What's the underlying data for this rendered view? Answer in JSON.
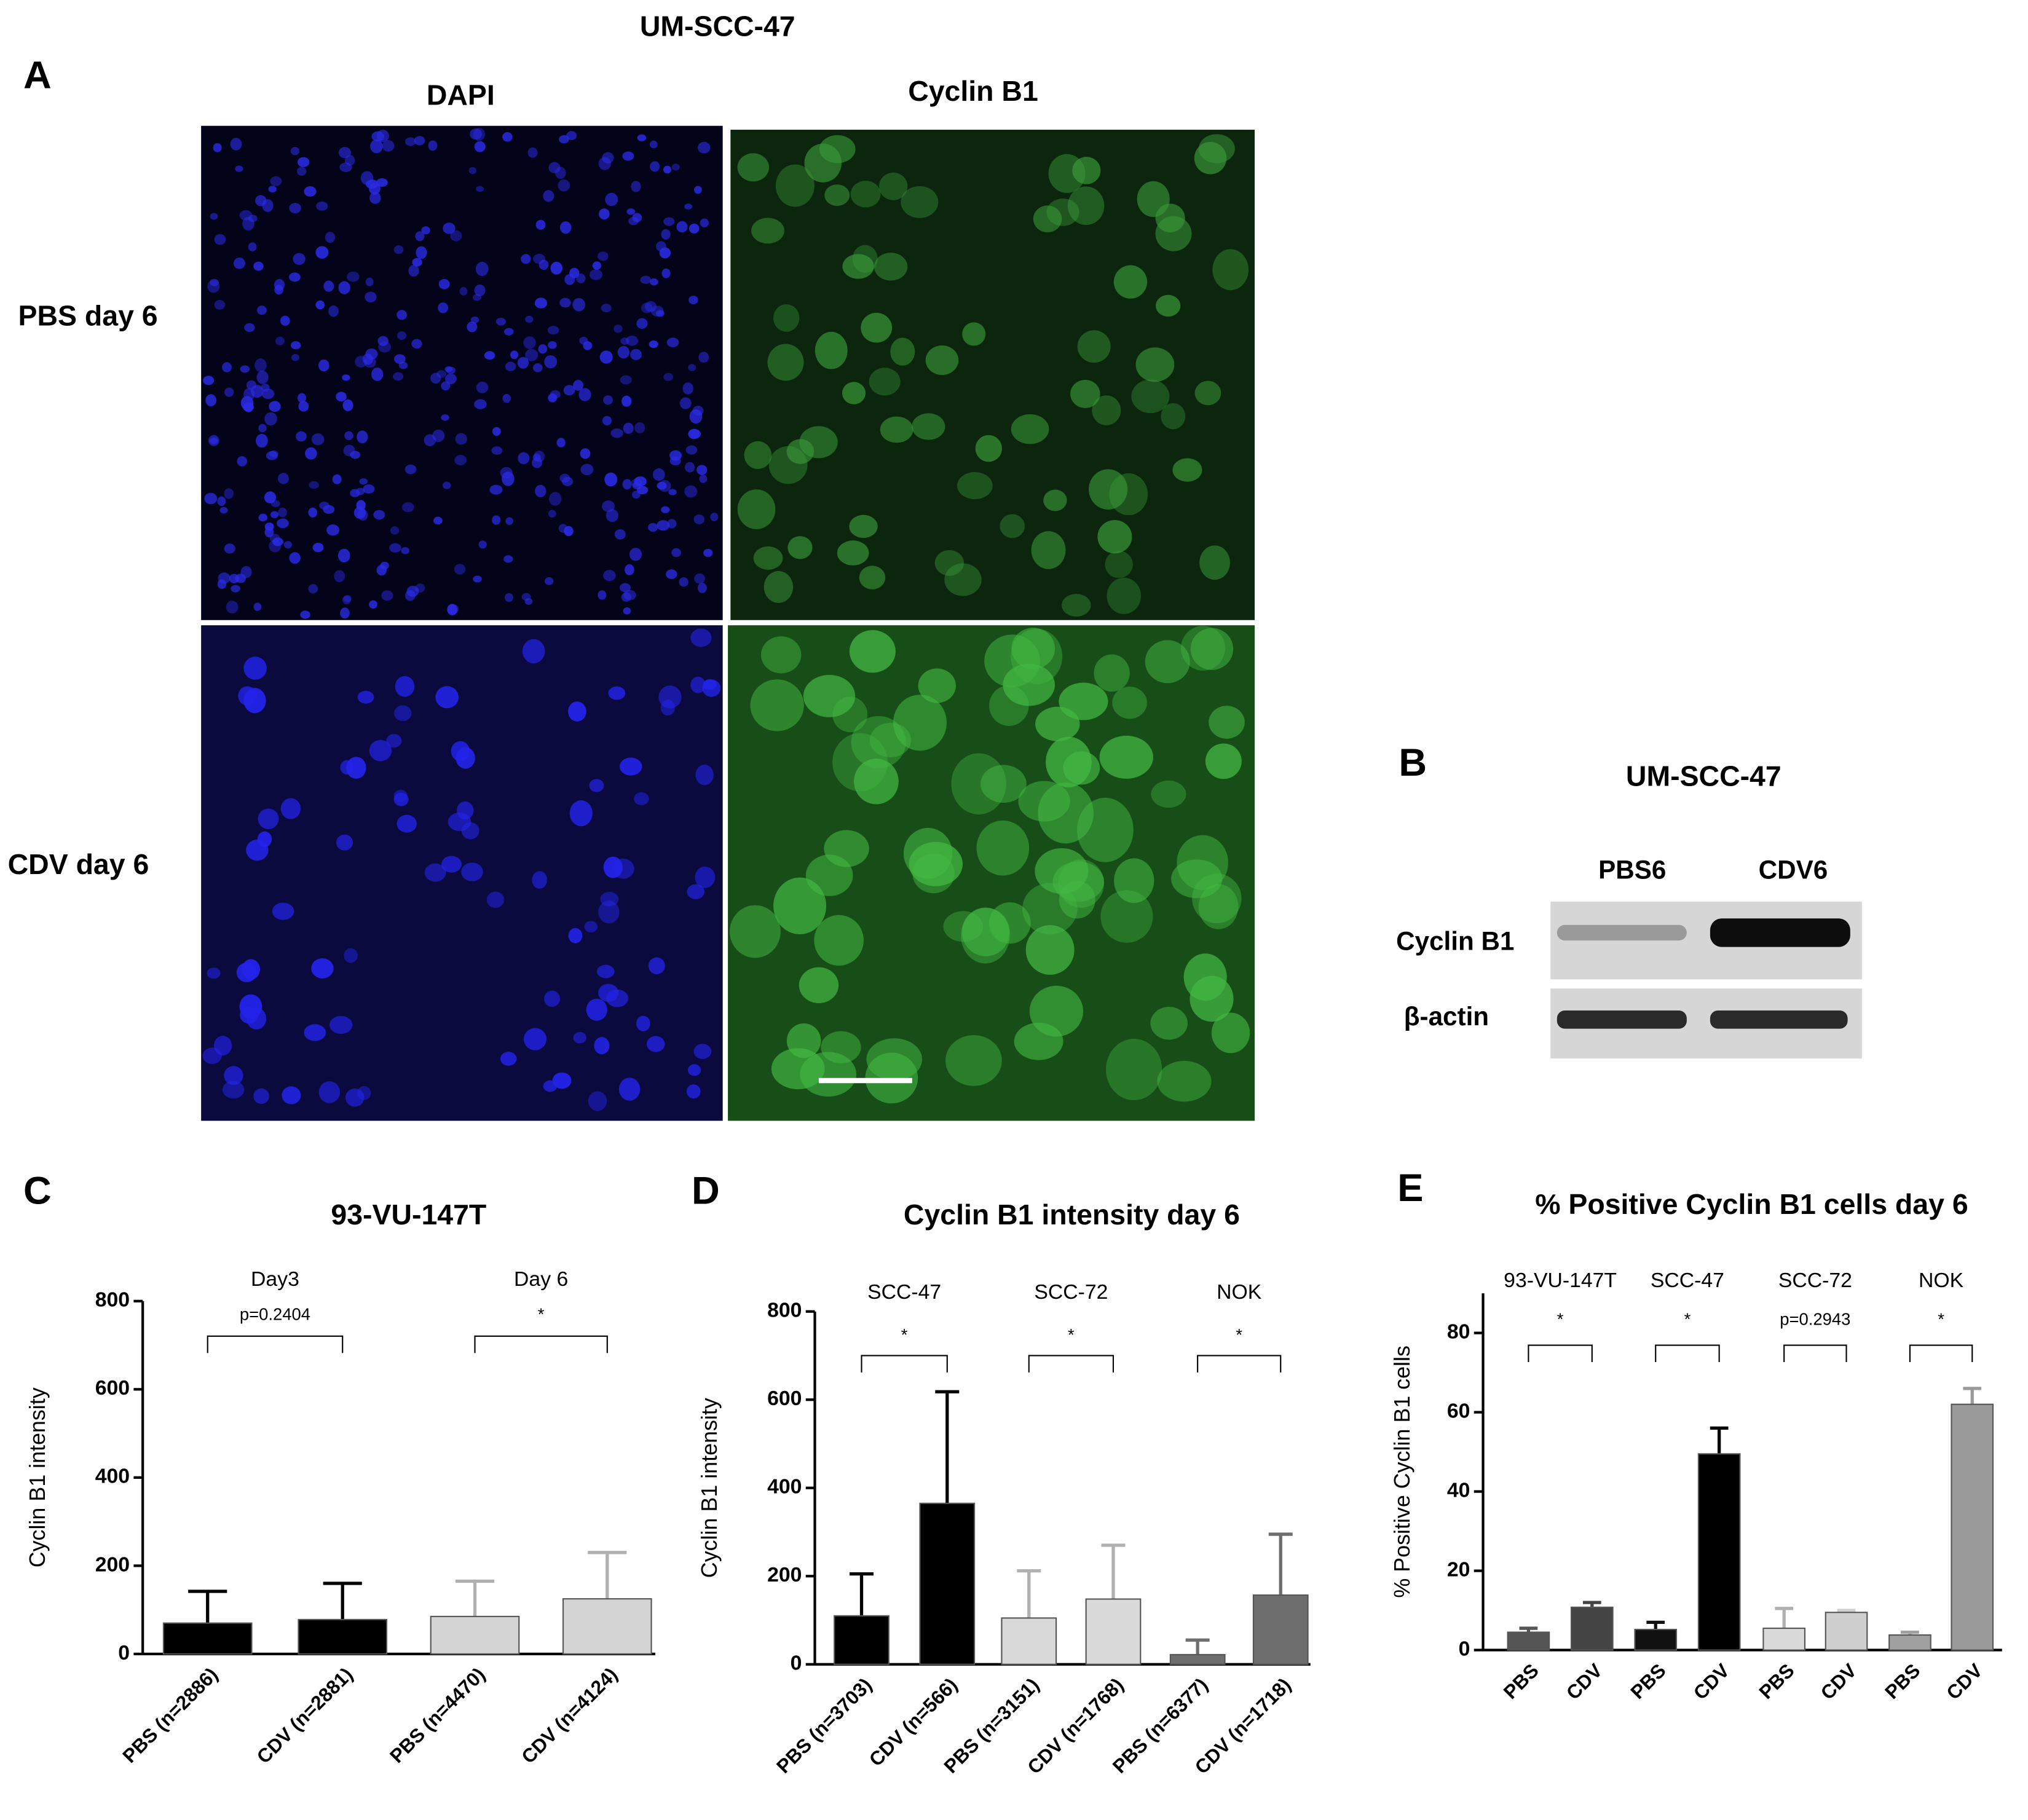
{
  "figure": {
    "title": "UM-SCC-47",
    "panel_a": {
      "letter": "A",
      "columns": [
        "DAPI",
        "Cyclin B1"
      ],
      "rows": [
        "PBS day 6",
        "CDV day 6"
      ]
    },
    "panel_b": {
      "letter": "B",
      "title": "UM-SCC-47",
      "lanes": [
        "PBS6",
        "CDV6"
      ],
      "bands": [
        "Cyclin B1",
        "β-actin"
      ]
    }
  },
  "chart_data": [
    {
      "type": "bar",
      "letter": "C",
      "title": "93-VU-147T",
      "ylabel": "Cyclin B1 intensity",
      "categories": [
        "PBS (n=2886)",
        "CDV (n=2881)",
        "PBS (n=4470)",
        "CDV (n=4124)"
      ],
      "values": [
        70,
        78,
        85,
        125
      ],
      "errors": [
        72,
        82,
        80,
        105
      ],
      "colors": [
        "#000000",
        "#000000",
        "#d4d4d4",
        "#d4d4d4"
      ],
      "ylim": [
        0,
        800
      ],
      "yticks": [
        0,
        200,
        400,
        600,
        800
      ],
      "groups": [
        {
          "name": "Day3",
          "significance": "p=0.2404"
        },
        {
          "name": "Day 6",
          "significance": "*"
        }
      ]
    },
    {
      "type": "bar",
      "letter": "D",
      "title": "Cyclin B1 intensity day 6",
      "ylabel": "Cyclin B1 intensity",
      "categories": [
        "PBS (n=3703)",
        "CDV (n=566)",
        "PBS (n=3151)",
        "CDV (n=1768)",
        "PBS (n=6377)",
        "CDV (n=1718)"
      ],
      "values": [
        110,
        365,
        105,
        148,
        22,
        157
      ],
      "errors": [
        95,
        253,
        107,
        122,
        33,
        138
      ],
      "colors": [
        "#000000",
        "#000000",
        "#d9d9d9",
        "#d9d9d9",
        "#6e6e6e",
        "#6e6e6e"
      ],
      "ylim": [
        0,
        800
      ],
      "yticks": [
        0,
        200,
        400,
        600,
        800
      ],
      "groups": [
        {
          "name": "SCC-47",
          "significance": "*"
        },
        {
          "name": "SCC-72",
          "significance": "*"
        },
        {
          "name": "NOK",
          "significance": "*"
        }
      ]
    },
    {
      "type": "bar",
      "letter": "E",
      "title": "% Positive Cyclin B1 cells day 6",
      "ylabel": "% Positive Cyclin B1 cells",
      "categories": [
        "PBS",
        "CDV",
        "PBS",
        "CDV",
        "PBS",
        "CDV",
        "PBS",
        "CDV"
      ],
      "values": [
        4.5,
        10.8,
        5.2,
        49.5,
        5.5,
        9.5,
        3.8,
        62
      ],
      "errors": [
        1,
        1.2,
        1.8,
        6.5,
        5,
        0.5,
        0.7,
        4
      ],
      "colors": [
        "#555555",
        "#444444",
        "#111111",
        "#000000",
        "#d9d9d9",
        "#cfcfcf",
        "#a0a0a0",
        "#9a9a9a"
      ],
      "ylim": [
        0,
        90
      ],
      "yticks": [
        0,
        20,
        40,
        60,
        80
      ],
      "groups": [
        {
          "name": "93-VU-147T",
          "significance": "*"
        },
        {
          "name": "SCC-47",
          "significance": "*"
        },
        {
          "name": "SCC-72",
          "significance": "p=0.2943"
        },
        {
          "name": "NOK",
          "significance": "*"
        }
      ]
    }
  ]
}
